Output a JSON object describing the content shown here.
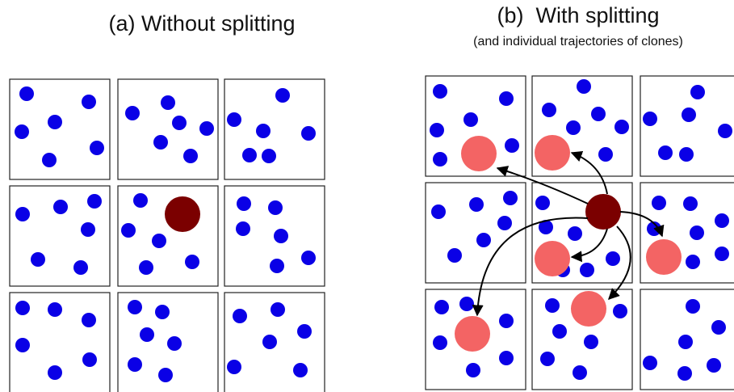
{
  "panel_a": {
    "title": "(a) Without splitting"
  },
  "panel_b": {
    "title": "(b)  With splitting",
    "subtitle": "(and individual trajectories of clones)"
  }
}
